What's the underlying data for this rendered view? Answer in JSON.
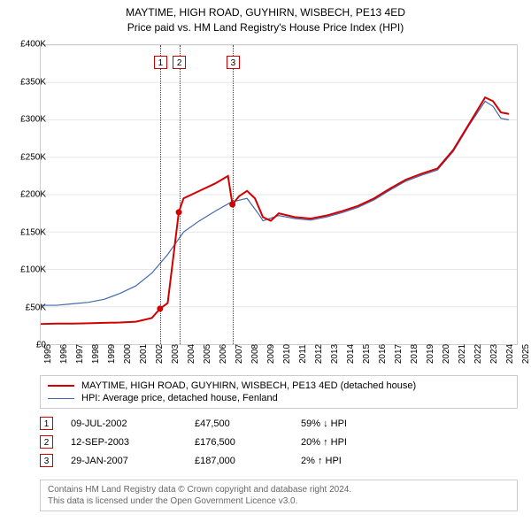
{
  "title_line1": "MAYTIME, HIGH ROAD, GUYHIRN, WISBECH, PE13 4ED",
  "title_line2": "Price paid vs. HM Land Registry's House Price Index (HPI)",
  "chart": {
    "type": "line",
    "background_color": "#ffffff",
    "grid_color": "#e5e5e5",
    "border_color": "#cccccc",
    "x_min": 1995,
    "x_max": 2025,
    "y_min": 0,
    "y_max": 400000,
    "y_tick_step": 50000,
    "y_tick_labels": [
      "£0",
      "£50K",
      "£100K",
      "£150K",
      "£200K",
      "£250K",
      "£300K",
      "£350K",
      "£400K"
    ],
    "x_tick_step": 1,
    "x_tick_labels": [
      "1995",
      "1996",
      "1997",
      "1998",
      "1999",
      "2000",
      "2001",
      "2002",
      "2003",
      "2004",
      "2005",
      "2006",
      "2007",
      "2008",
      "2009",
      "2010",
      "2011",
      "2012",
      "2013",
      "2014",
      "2015",
      "2016",
      "2017",
      "2018",
      "2019",
      "2020",
      "2021",
      "2022",
      "2023",
      "2024",
      "2025"
    ],
    "series": [
      {
        "id": "property",
        "label": "MAYTIME, HIGH ROAD, GUYHIRN, WISBECH, PE13 4ED (detached house)",
        "color": "#d00000",
        "line_width": 2,
        "data": [
          [
            1995,
            27000
          ],
          [
            1996,
            27500
          ],
          [
            1997,
            27500
          ],
          [
            1998,
            28000
          ],
          [
            1999,
            28500
          ],
          [
            2000,
            29000
          ],
          [
            2001,
            30000
          ],
          [
            2002,
            35000
          ],
          [
            2002.52,
            47500
          ],
          [
            2003,
            55000
          ],
          [
            2003.7,
            176500
          ],
          [
            2004,
            195000
          ],
          [
            2005,
            205000
          ],
          [
            2006,
            215000
          ],
          [
            2006.8,
            225000
          ],
          [
            2007.08,
            187000
          ],
          [
            2007.5,
            198000
          ],
          [
            2008,
            205000
          ],
          [
            2008.5,
            195000
          ],
          [
            2009,
            170000
          ],
          [
            2009.5,
            165000
          ],
          [
            2010,
            175000
          ],
          [
            2011,
            170000
          ],
          [
            2012,
            168000
          ],
          [
            2013,
            172000
          ],
          [
            2014,
            178000
          ],
          [
            2015,
            185000
          ],
          [
            2016,
            195000
          ],
          [
            2017,
            208000
          ],
          [
            2018,
            220000
          ],
          [
            2019,
            228000
          ],
          [
            2020,
            235000
          ],
          [
            2021,
            260000
          ],
          [
            2022,
            295000
          ],
          [
            2023,
            330000
          ],
          [
            2023.5,
            325000
          ],
          [
            2024,
            310000
          ],
          [
            2024.5,
            308000
          ]
        ]
      },
      {
        "id": "hpi",
        "label": "HPI: Average price, detached house, Fenland",
        "color": "#4169b0",
        "line_width": 1.2,
        "data": [
          [
            1995,
            52000
          ],
          [
            1996,
            52000
          ],
          [
            1997,
            54000
          ],
          [
            1998,
            56000
          ],
          [
            1999,
            60000
          ],
          [
            2000,
            68000
          ],
          [
            2001,
            78000
          ],
          [
            2002,
            95000
          ],
          [
            2003,
            120000
          ],
          [
            2004,
            150000
          ],
          [
            2005,
            165000
          ],
          [
            2006,
            178000
          ],
          [
            2007,
            190000
          ],
          [
            2008,
            195000
          ],
          [
            2008.8,
            172000
          ],
          [
            2009,
            165000
          ],
          [
            2010,
            172000
          ],
          [
            2011,
            168000
          ],
          [
            2012,
            166000
          ],
          [
            2013,
            170000
          ],
          [
            2014,
            176000
          ],
          [
            2015,
            183000
          ],
          [
            2016,
            193000
          ],
          [
            2017,
            206000
          ],
          [
            2018,
            218000
          ],
          [
            2019,
            226000
          ],
          [
            2020,
            233000
          ],
          [
            2021,
            258000
          ],
          [
            2022,
            293000
          ],
          [
            2023,
            325000
          ],
          [
            2023.5,
            318000
          ],
          [
            2024,
            302000
          ],
          [
            2024.5,
            300000
          ]
        ]
      }
    ],
    "markers": [
      {
        "n": "1",
        "x": 2002.52,
        "y": 47500
      },
      {
        "n": "2",
        "x": 2003.7,
        "y": 176500
      },
      {
        "n": "3",
        "x": 2007.08,
        "y": 187000
      }
    ]
  },
  "transactions": [
    {
      "n": "1",
      "date": "09-JUL-2002",
      "price": "£47,500",
      "pct": "59% ↓ HPI"
    },
    {
      "n": "2",
      "date": "12-SEP-2003",
      "price": "£176,500",
      "pct": "20% ↑ HPI"
    },
    {
      "n": "3",
      "date": "29-JAN-2007",
      "price": "£187,000",
      "pct": "2% ↑ HPI"
    }
  ],
  "footer_line1": "Contains HM Land Registry data © Crown copyright and database right 2024.",
  "footer_line2": "This data is licensed under the Open Government Licence v3.0."
}
